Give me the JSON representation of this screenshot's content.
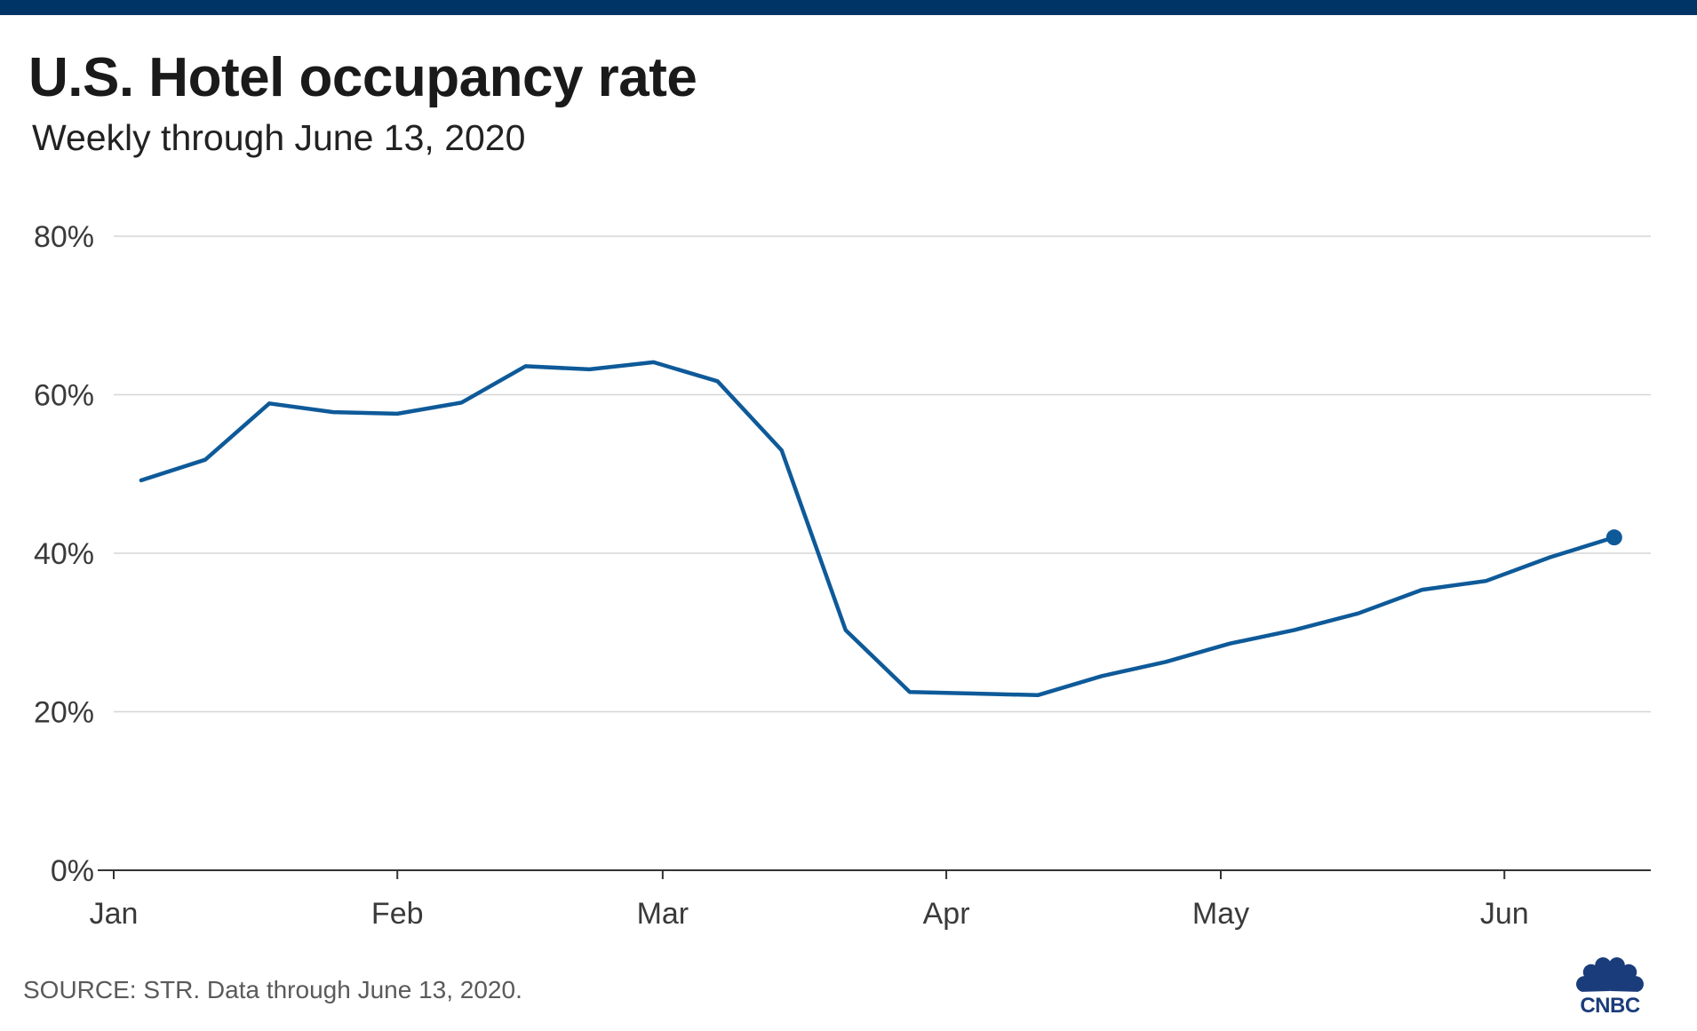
{
  "header": {
    "title": "U.S. Hotel occupancy rate",
    "subtitle": "Weekly through June 13, 2020"
  },
  "footer": {
    "source": "SOURCE: STR. Data through June 13, 2020.",
    "logo_text": "CNBC"
  },
  "colors": {
    "top_bar": "#003366",
    "line": "#0e5a99",
    "grid": "#d6d6d6",
    "axis": "#333333",
    "logo": "#1a3c7a"
  },
  "chart_data": {
    "type": "line",
    "title": "U.S. Hotel occupancy rate",
    "subtitle": "Weekly through June 13, 2020",
    "xlabel": "",
    "ylabel": "",
    "y_ticks": [
      0,
      20,
      40,
      60,
      80
    ],
    "y_tick_labels": [
      "0%",
      "20%",
      "40%",
      "60%",
      "80%"
    ],
    "ylim": [
      0,
      80
    ],
    "x_tick_labels": [
      "Jan",
      "Feb",
      "Mar",
      "Apr",
      "May",
      "Jun"
    ],
    "x_tick_dates": [
      "2020-01-01",
      "2020-02-01",
      "2020-03-01",
      "2020-04-01",
      "2020-05-01",
      "2020-06-01"
    ],
    "xlim": [
      "2020-01-01",
      "2020-06-17"
    ],
    "grid": true,
    "series": [
      {
        "x": [
          "2020-01-04",
          "2020-01-11",
          "2020-01-18",
          "2020-01-25",
          "2020-02-01",
          "2020-02-08",
          "2020-02-15",
          "2020-02-22",
          "2020-02-29",
          "2020-03-07",
          "2020-03-14",
          "2020-03-21",
          "2020-03-28",
          "2020-04-04",
          "2020-04-11",
          "2020-04-18",
          "2020-04-25",
          "2020-05-02",
          "2020-05-09",
          "2020-05-16",
          "2020-05-23",
          "2020-05-30",
          "2020-06-06",
          "2020-06-13"
        ],
        "values": [
          49.2,
          51.8,
          58.9,
          57.8,
          57.6,
          59.0,
          63.6,
          63.2,
          64.1,
          61.7,
          53.0,
          30.3,
          22.5,
          22.3,
          22.1,
          24.5,
          26.3,
          28.6,
          30.3,
          32.4,
          35.4,
          36.5,
          39.5,
          42.0
        ]
      }
    ],
    "last_point_marker": true
  }
}
